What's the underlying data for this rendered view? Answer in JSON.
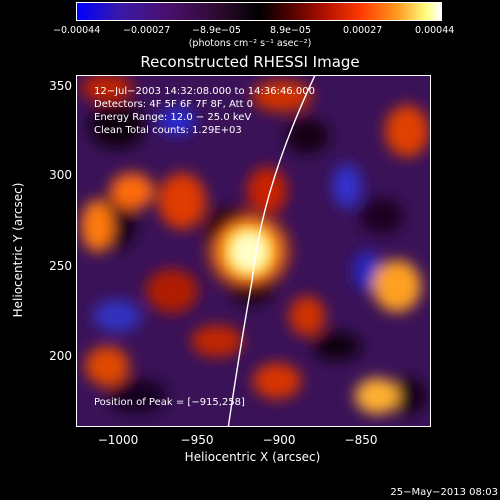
{
  "colorbar": {
    "ticks": [
      "−0.00044",
      "−0.00027",
      "−8.9e−05",
      "8.9e−05",
      "0.00027",
      "0.00044"
    ],
    "units": "(photons cm⁻² s⁻¹ asec⁻²)"
  },
  "image": {
    "title": "Reconstructed RHESSI Image",
    "time_range": "12−Jul−2003 14:32:08.000 to 14:36:46.000",
    "detectors": "Detectors: 4F 5F 6F 7F 8F, Att 0",
    "energy_range": "Energy Range: 12.0 − 25.0 keV",
    "clean_counts": "Clean    Total counts: 1.29E+03",
    "peak_position": "Position of Peak = [−915,258]"
  },
  "axes": {
    "xlabel": "Heliocentric X (arcsec)",
    "ylabel": "Heliocentric Y (arcsec)",
    "xticks": [
      "−1000",
      "−950",
      "−900",
      "−850"
    ],
    "yticks": [
      "350",
      "300",
      "250",
      "200"
    ]
  },
  "footer": {
    "datestamp": "25−May−2013 08:03"
  },
  "colors": {
    "background": "#000000",
    "text": "#ffffff",
    "peak": "#ffff80"
  }
}
